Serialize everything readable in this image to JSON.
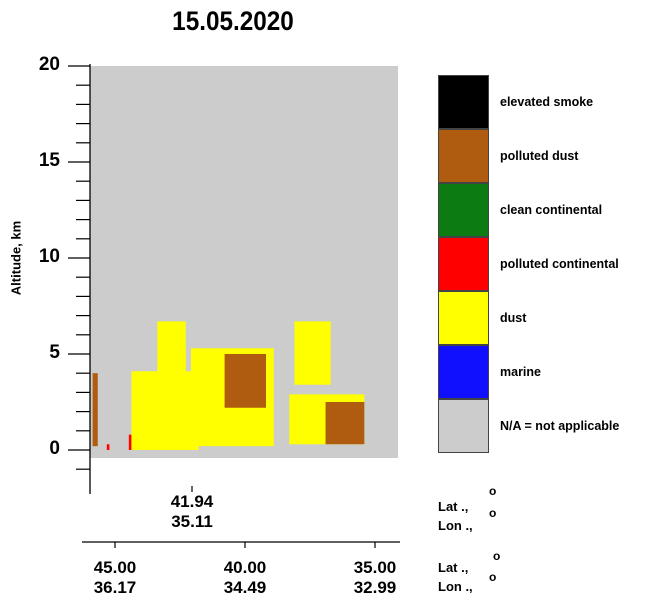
{
  "chart_data": {
    "type": "heatmap",
    "title": "15.05.2020",
    "ylabel": "Altitude, km",
    "ylim": [
      -1,
      20
    ],
    "yticks": [
      0,
      5,
      10,
      15,
      20
    ],
    "axis1": {
      "x": [
        "41.94"
      ],
      "y": [
        "35.11"
      ]
    },
    "axis2": {
      "x": [
        "45.00",
        "40.00",
        "35.00"
      ],
      "y": [
        "36.17",
        "34.49",
        "32.99"
      ]
    },
    "latlon_label": {
      "lat": "Lat",
      "lon": "Lon"
    },
    "latlon_label_2": {
      "lat": "Lat",
      "lon": "Lon"
    },
    "degree_mark": "o",
    "legend": [
      {
        "name": "elevated smoke",
        "color": "#000000"
      },
      {
        "name": "polluted dust",
        "color": "#b05c10"
      },
      {
        "name": "clean continental",
        "color": "#0c7c12"
      },
      {
        "name": "polluted continental",
        "color": "#ff0000"
      },
      {
        "name": "dust",
        "color": "#ffff00"
      },
      {
        "name": "marine",
        "color": "#1010ff"
      },
      {
        "name": "N/A = not applicable",
        "color": "#cccccc"
      }
    ],
    "layers": [
      {
        "type": "polluted dust",
        "lon_from": 45.0,
        "lon_to": 44.8,
        "alt_from": 0.2,
        "alt_to": 4.0
      },
      {
        "type": "polluted continental",
        "lon_from": 44.45,
        "lon_to": 44.35,
        "alt_from": 0.0,
        "alt_to": 0.3
      },
      {
        "type": "polluted continental",
        "lon_from": 43.6,
        "lon_to": 43.4,
        "alt_from": 0.0,
        "alt_to": 0.8
      },
      {
        "type": "dust",
        "lon_from": 43.5,
        "lon_to": 40.9,
        "alt_from": 0.0,
        "alt_to": 4.1
      },
      {
        "type": "dust",
        "lon_from": 42.5,
        "lon_to": 41.4,
        "alt_from": 0.0,
        "alt_to": 6.7
      },
      {
        "type": "dust",
        "lon_from": 41.2,
        "lon_to": 38.0,
        "alt_from": 0.2,
        "alt_to": 5.3
      },
      {
        "type": "polluted dust",
        "lon_from": 39.9,
        "lon_to": 38.3,
        "alt_from": 2.2,
        "alt_to": 5.0
      },
      {
        "type": "dust",
        "lon_from": 37.2,
        "lon_to": 35.8,
        "alt_from": 3.4,
        "alt_to": 6.7
      },
      {
        "type": "dust",
        "lon_from": 37.4,
        "lon_to": 34.5,
        "alt_from": 0.3,
        "alt_to": 2.9
      },
      {
        "type": "polluted dust",
        "lon_from": 36.0,
        "lon_to": 34.5,
        "alt_from": 0.3,
        "alt_to": 2.5
      }
    ]
  }
}
